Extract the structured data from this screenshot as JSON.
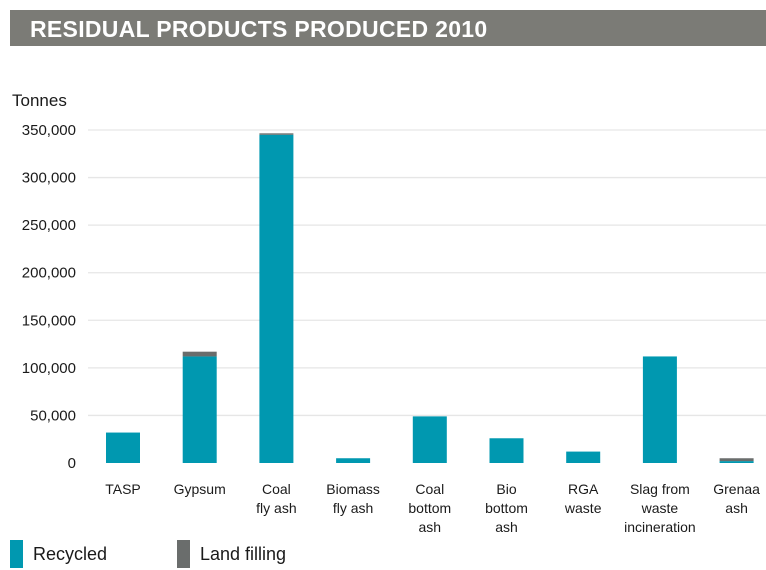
{
  "header": {
    "title": "RESIDUAL PRODUCTS PRODUCED 2010"
  },
  "chart_data": {
    "type": "bar",
    "stacked": true,
    "ylabel": "Tonnes",
    "ylim": [
      0,
      350000
    ],
    "yticks": [
      0,
      50000,
      100000,
      150000,
      200000,
      250000,
      300000,
      350000
    ],
    "ytick_labels": [
      "0",
      "50,000",
      "100,000",
      "150,000",
      "200,000",
      "250,000",
      "300,000",
      "350,000"
    ],
    "grid": true,
    "categories": [
      [
        "TASP"
      ],
      [
        "Gypsum"
      ],
      [
        "Coal",
        "fly ash"
      ],
      [
        "Biomass",
        "fly ash"
      ],
      [
        "Coal",
        "bottom",
        "ash"
      ],
      [
        "Bio",
        "bottom",
        "ash"
      ],
      [
        "RGA",
        "waste"
      ],
      [
        "Slag from",
        "waste",
        "incineration"
      ],
      [
        "Grenaa",
        "ash"
      ]
    ],
    "series": [
      {
        "name": "Recycled",
        "color": "#0098b0",
        "values": [
          32000,
          112000,
          345000,
          5000,
          49000,
          26000,
          12000,
          112000,
          2000
        ]
      },
      {
        "name": "Land filling",
        "color": "#6a6d6c",
        "values": [
          0,
          5000,
          1500,
          0,
          0,
          0,
          0,
          0,
          3000
        ]
      }
    ],
    "legend_position": "bottom-left"
  }
}
